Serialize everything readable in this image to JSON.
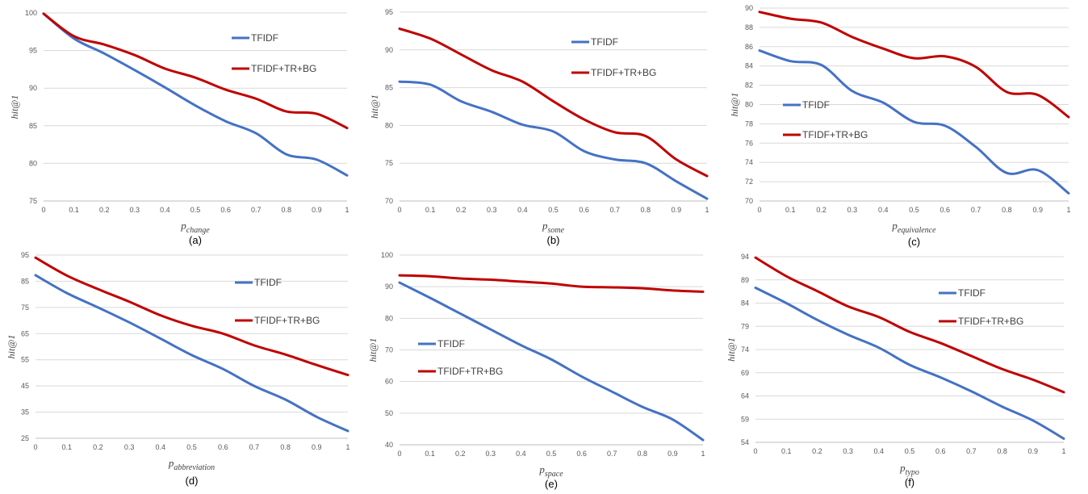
{
  "colors": {
    "tfidf": "#4472C4",
    "tfidf_tr_bg": "#C00000",
    "grid": "#D9D9D9",
    "axis": "#BFBFBF"
  },
  "chart_data": [
    {
      "id": "a",
      "type": "line",
      "panel_label": "(a)",
      "xlabel": {
        "main": "p",
        "sub": "change"
      },
      "ylabel": "hit@1",
      "x": [
        0,
        0.1,
        0.2,
        0.3,
        0.4,
        0.5,
        0.6,
        0.7,
        0.8,
        0.9,
        1
      ],
      "x_ticks": [
        "0",
        "0.1",
        "0.2",
        "0.3",
        "0.4",
        "0.5",
        "0.6",
        "0.7",
        "0.8",
        "0.9",
        "1"
      ],
      "ylim": [
        75,
        100
      ],
      "y_ticks": [
        75,
        80,
        85,
        90,
        95,
        100
      ],
      "grid": true,
      "legend_position": "top-right",
      "series": [
        {
          "name": "TFIDF",
          "color": "#4472C4",
          "values": [
            99.9,
            96.6,
            94.6,
            92.4,
            90.1,
            87.7,
            85.6,
            84.0,
            81.2,
            80.5,
            78.4
          ]
        },
        {
          "name": "TFIDF+TR+BG",
          "color": "#C00000",
          "values": [
            99.9,
            96.9,
            95.8,
            94.4,
            92.6,
            91.4,
            89.8,
            88.6,
            86.9,
            86.6,
            84.7
          ]
        }
      ]
    },
    {
      "id": "b",
      "type": "line",
      "panel_label": "(b)",
      "xlabel": {
        "main": "p",
        "sub": "some"
      },
      "ylabel": "hit@1",
      "x": [
        0,
        0.1,
        0.2,
        0.3,
        0.4,
        0.5,
        0.6,
        0.7,
        0.8,
        0.9,
        1
      ],
      "x_ticks": [
        "0",
        "0.1",
        "0.2",
        "0.3",
        "0.4",
        "0.5",
        "0.6",
        "0.7",
        "0.8",
        "0.9",
        "1"
      ],
      "ylim": [
        70,
        95
      ],
      "y_ticks": [
        70,
        75,
        80,
        85,
        90,
        95
      ],
      "grid": true,
      "legend_position": "top-right",
      "series": [
        {
          "name": "TFIDF",
          "color": "#4472C4",
          "values": [
            85.8,
            85.4,
            83.2,
            81.8,
            80.1,
            79.2,
            76.6,
            75.5,
            75.0,
            72.6,
            70.3
          ]
        },
        {
          "name": "TFIDF+TR+BG",
          "color": "#C00000",
          "values": [
            92.8,
            91.5,
            89.4,
            87.3,
            85.8,
            83.2,
            80.8,
            79.1,
            78.6,
            75.5,
            73.3
          ]
        }
      ]
    },
    {
      "id": "c",
      "type": "line",
      "panel_label": "(c)",
      "xlabel": {
        "main": "p",
        "sub": "equivalence"
      },
      "ylabel": "hit@1",
      "x": [
        0,
        0.1,
        0.2,
        0.3,
        0.4,
        0.5,
        0.6,
        0.7,
        0.8,
        0.9,
        1
      ],
      "x_ticks": [
        "0",
        "0.1",
        "0.2",
        "0.3",
        "0.4",
        "0.5",
        "0.6",
        "0.7",
        "0.8",
        "0.9",
        "1"
      ],
      "ylim": [
        70,
        90
      ],
      "y_ticks": [
        70,
        72,
        74,
        76,
        78,
        80,
        82,
        84,
        86,
        88,
        90
      ],
      "grid": true,
      "legend_position": "middle-left",
      "series": [
        {
          "name": "TFIDF",
          "color": "#4472C4",
          "values": [
            85.6,
            84.5,
            84.1,
            81.4,
            80.2,
            78.2,
            77.8,
            75.6,
            72.9,
            73.2,
            70.8
          ]
        },
        {
          "name": "TFIDF+TR+BG",
          "color": "#C00000",
          "values": [
            89.6,
            88.9,
            88.5,
            87.0,
            85.8,
            84.8,
            85.0,
            83.9,
            81.3,
            81.0,
            78.7
          ]
        }
      ]
    },
    {
      "id": "d",
      "type": "line",
      "panel_label": "(d)",
      "xlabel": {
        "main": "p",
        "sub": "abbreviation"
      },
      "ylabel": "hit@1",
      "x": [
        0,
        0.1,
        0.2,
        0.3,
        0.4,
        0.5,
        0.6,
        0.7,
        0.8,
        0.9,
        1
      ],
      "x_ticks": [
        "0",
        "0.1",
        "0.2",
        "0.3",
        "0.4",
        "0.5",
        "0.6",
        "0.7",
        "0.8",
        "0.9",
        "1"
      ],
      "ylim": [
        25,
        95
      ],
      "y_ticks": [
        25,
        35,
        45,
        55,
        65,
        75,
        85,
        95
      ],
      "grid": true,
      "legend_position": "top-right",
      "series": [
        {
          "name": "TFIDF",
          "color": "#4472C4",
          "values": [
            87.3,
            80.5,
            75.0,
            69.3,
            63.1,
            56.8,
            51.5,
            45.0,
            39.8,
            33.2,
            27.8
          ]
        },
        {
          "name": "TFIDF+TR+BG",
          "color": "#C00000",
          "values": [
            94.0,
            87.2,
            82.0,
            77.2,
            72.0,
            68.0,
            65.0,
            60.5,
            57.0,
            53.0,
            49.2
          ]
        }
      ]
    },
    {
      "id": "e",
      "type": "line",
      "panel_label": "(e)",
      "xlabel": {
        "main": "p",
        "sub": "space"
      },
      "ylabel": "hit@1",
      "x": [
        0,
        0.1,
        0.2,
        0.3,
        0.4,
        0.5,
        0.6,
        0.7,
        0.8,
        0.9,
        1
      ],
      "x_ticks": [
        "0",
        "0.1",
        "0.2",
        "0.3",
        "0.4",
        "0.5",
        "0.6",
        "0.7",
        "0.8",
        "0.9",
        "1"
      ],
      "ylim": [
        40,
        100
      ],
      "y_ticks": [
        40,
        50,
        60,
        70,
        80,
        90,
        100
      ],
      "grid": true,
      "legend_position": "middle-left",
      "series": [
        {
          "name": "TFIDF",
          "color": "#4472C4",
          "values": [
            91.3,
            86.5,
            81.5,
            76.5,
            71.5,
            67.0,
            61.6,
            56.8,
            52.0,
            48.0,
            41.5
          ]
        },
        {
          "name": "TFIDF+TR+BG",
          "color": "#C00000",
          "values": [
            93.6,
            93.3,
            92.6,
            92.2,
            91.6,
            91.0,
            90.0,
            89.8,
            89.5,
            88.8,
            88.4
          ]
        }
      ]
    },
    {
      "id": "f",
      "type": "line",
      "panel_label": "(f)",
      "xlabel": {
        "main": "p",
        "sub": "typo"
      },
      "ylabel": "hit@1",
      "x": [
        0,
        0.1,
        0.2,
        0.3,
        0.4,
        0.5,
        0.6,
        0.7,
        0.8,
        0.9,
        1
      ],
      "x_ticks": [
        "0",
        "0.1",
        "0.2",
        "0.3",
        "0.4",
        "0.5",
        "0.6",
        "0.7",
        "0.8",
        "0.9",
        "1"
      ],
      "ylim": [
        54,
        94
      ],
      "y_ticks": [
        54,
        59,
        64,
        69,
        74,
        79,
        84,
        89,
        94
      ],
      "grid": true,
      "legend_position": "top-right",
      "series": [
        {
          "name": "TFIDF",
          "color": "#4472C4",
          "values": [
            87.3,
            84.0,
            80.4,
            77.2,
            74.4,
            70.7,
            68.0,
            65.0,
            61.7,
            58.7,
            54.8
          ]
        },
        {
          "name": "TFIDF+TR+BG",
          "color": "#C00000",
          "values": [
            93.8,
            89.8,
            86.6,
            83.3,
            81.0,
            77.8,
            75.4,
            72.6,
            69.8,
            67.5,
            64.8
          ]
        }
      ]
    }
  ]
}
